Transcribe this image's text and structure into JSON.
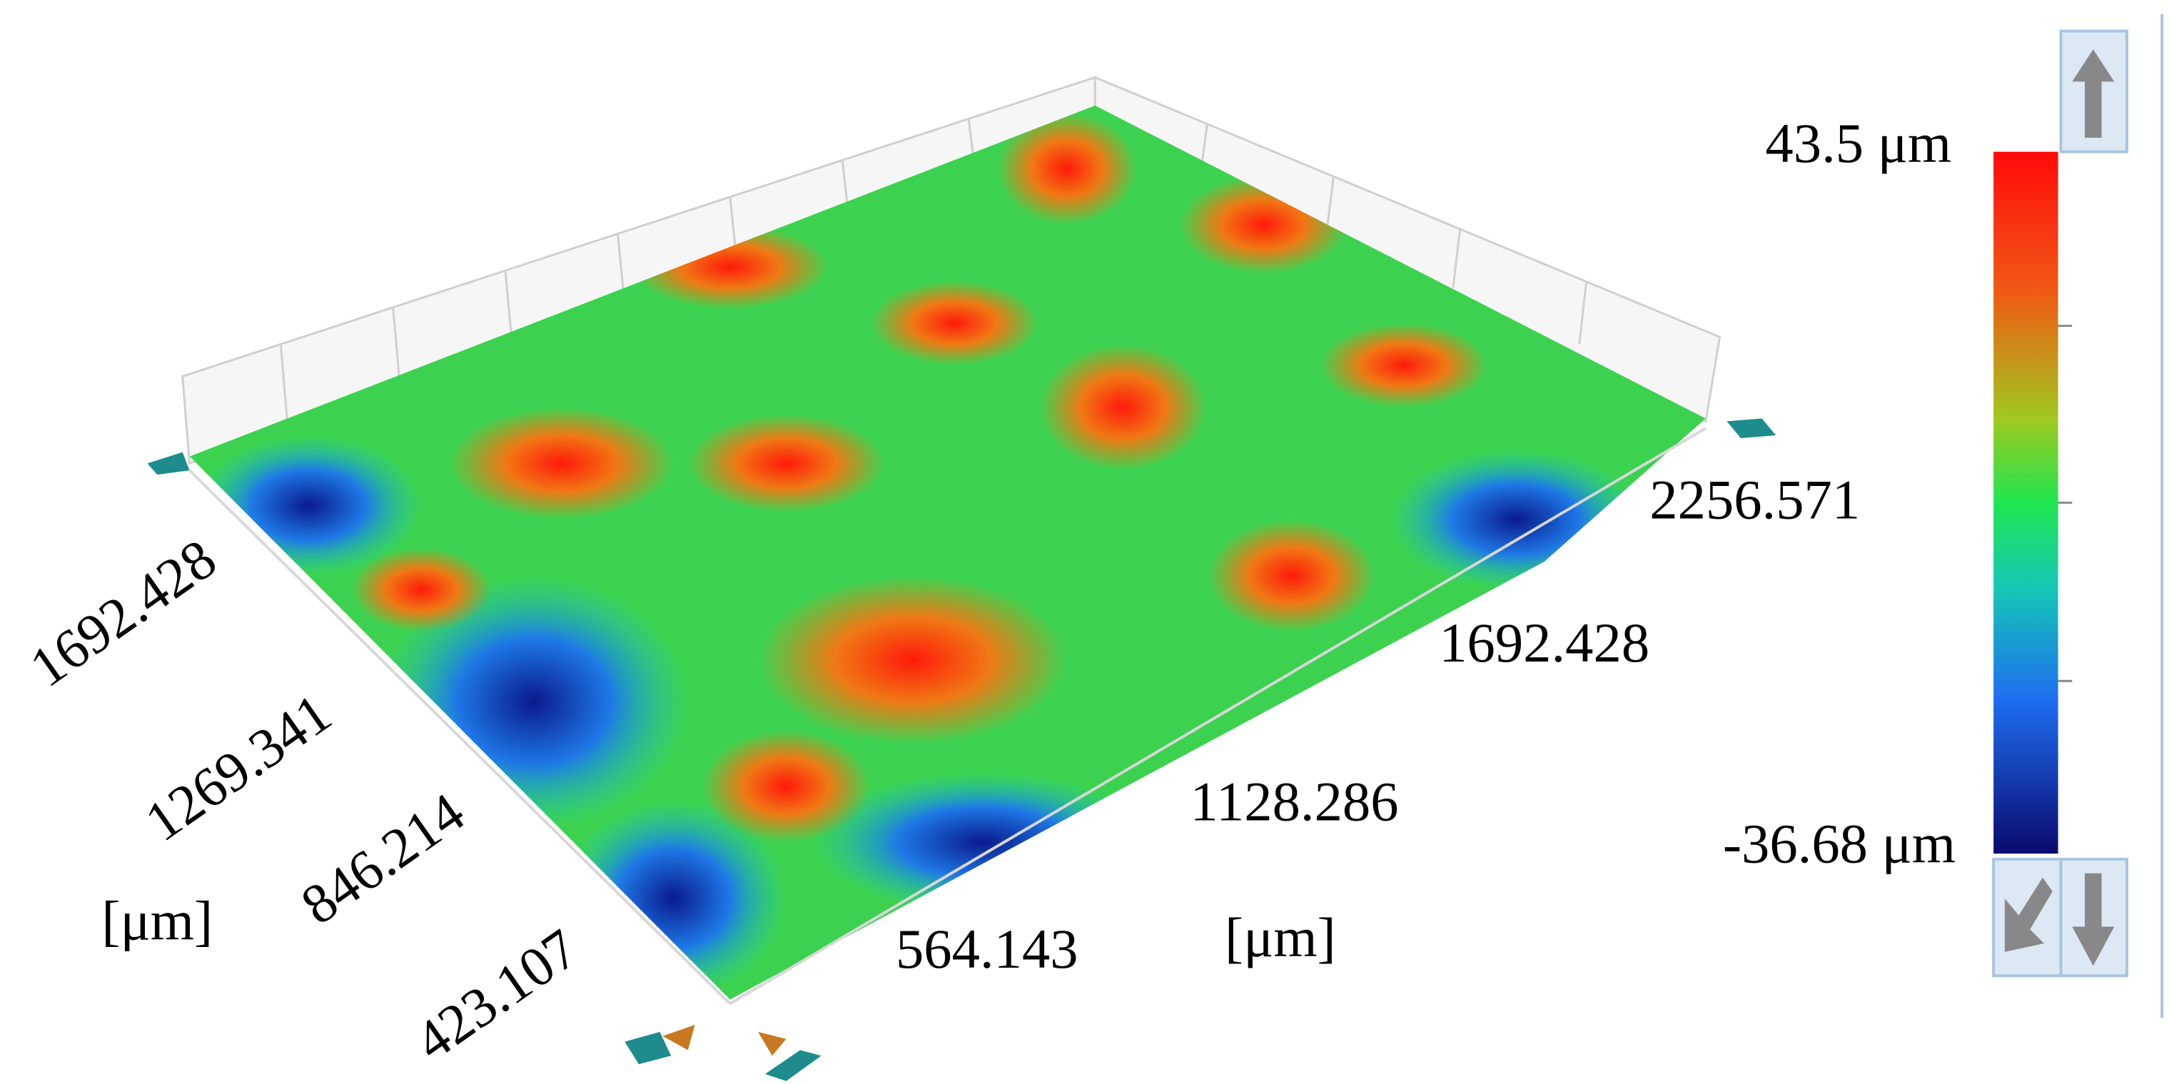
{
  "colorbar": {
    "max_label": "43.5 μm",
    "min_label": "-36.68 μm"
  },
  "left_axis": {
    "ticks": [
      "1692.428",
      "1269.341",
      "846.214",
      "423.107"
    ],
    "unit": "[μm]"
  },
  "right_axis": {
    "ticks": [
      "2256.571",
      "1692.428",
      "1128.286",
      "564.143"
    ],
    "unit": "[μm]"
  }
}
